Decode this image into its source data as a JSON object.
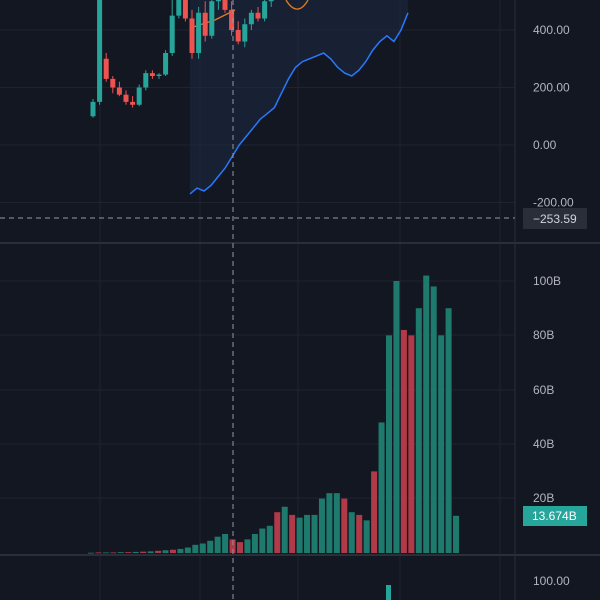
{
  "colors": {
    "background": "#131722",
    "grid": "#1f2330",
    "pane_divider": "#2a2e39",
    "up": "#26a69a",
    "down": "#ef5350",
    "volume_up": "#1f7a6e",
    "volume_down": "#b03a48",
    "line_blue": "#2979ff",
    "line_orange": "#e07b20",
    "crosshair": "#9598a1",
    "tag_bg": "#2a2e39",
    "volume_tag_bg": "#26a69a"
  },
  "price_axis": {
    "ticks": [
      "400.00",
      "200.00",
      "0.00",
      "-200.00"
    ],
    "crosshair_value": "−253.59"
  },
  "volume_axis": {
    "ticks": [
      "100B",
      "80B",
      "60B",
      "40B",
      "20B"
    ],
    "last_value": "13.674B"
  },
  "bottom_axis": {
    "ticks": [
      "100.00"
    ]
  },
  "chart_data": [
    {
      "type": "candlestick",
      "pane": "price",
      "ylim": [
        -300,
        520
      ],
      "candles": [
        {
          "o": 100,
          "h": 160,
          "l": 95,
          "c": 150
        },
        {
          "o": 150,
          "h": 520,
          "l": 140,
          "c": 520
        },
        {
          "o": 300,
          "h": 320,
          "l": 220,
          "c": 230
        },
        {
          "o": 230,
          "h": 240,
          "l": 180,
          "c": 200
        },
        {
          "o": 200,
          "h": 220,
          "l": 170,
          "c": 175
        },
        {
          "o": 175,
          "h": 190,
          "l": 140,
          "c": 150
        },
        {
          "o": 150,
          "h": 170,
          "l": 130,
          "c": 140
        },
        {
          "o": 140,
          "h": 210,
          "l": 135,
          "c": 200
        },
        {
          "o": 200,
          "h": 260,
          "l": 190,
          "c": 250
        },
        {
          "o": 250,
          "h": 260,
          "l": 230,
          "c": 240
        },
        {
          "o": 240,
          "h": 250,
          "l": 230,
          "c": 245
        },
        {
          "o": 245,
          "h": 330,
          "l": 240,
          "c": 320
        },
        {
          "o": 320,
          "h": 520,
          "l": 310,
          "c": 450
        },
        {
          "o": 450,
          "h": 520,
          "l": 440,
          "c": 520
        },
        {
          "o": 520,
          "h": 520,
          "l": 430,
          "c": 440
        },
        {
          "o": 440,
          "h": 470,
          "l": 300,
          "c": 320
        },
        {
          "o": 320,
          "h": 480,
          "l": 300,
          "c": 460
        },
        {
          "o": 460,
          "h": 500,
          "l": 360,
          "c": 380
        },
        {
          "o": 380,
          "h": 520,
          "l": 370,
          "c": 500
        },
        {
          "o": 500,
          "h": 520,
          "l": 470,
          "c": 510
        },
        {
          "o": 510,
          "h": 520,
          "l": 460,
          "c": 470
        },
        {
          "o": 470,
          "h": 500,
          "l": 380,
          "c": 400
        },
        {
          "o": 400,
          "h": 430,
          "l": 350,
          "c": 360
        },
        {
          "o": 360,
          "h": 440,
          "l": 340,
          "c": 420
        },
        {
          "o": 420,
          "h": 470,
          "l": 400,
          "c": 460
        },
        {
          "o": 460,
          "h": 480,
          "l": 430,
          "c": 440
        },
        {
          "o": 440,
          "h": 520,
          "l": 430,
          "c": 500
        },
        {
          "o": 500,
          "h": 520,
          "l": 480,
          "c": 510
        }
      ]
    },
    {
      "type": "line",
      "pane": "price",
      "series": [
        {
          "color": "blue",
          "values": [
            -170,
            -150,
            -160,
            -140,
            -110,
            -80,
            -40,
            0,
            30,
            60,
            90,
            110,
            130,
            180,
            230,
            270,
            290,
            300,
            310,
            320,
            300,
            270,
            250,
            240,
            260,
            290,
            330,
            360,
            380,
            360,
            400,
            460
          ]
        }
      ]
    },
    {
      "type": "bar",
      "pane": "volume",
      "ylim": [
        0,
        100
      ],
      "values": [
        0.1,
        0.2,
        0.2,
        0.2,
        0.3,
        0.3,
        0.4,
        0.5,
        0.6,
        0.8,
        1.0,
        1.2,
        1.5,
        2.0,
        3.0,
        3.5,
        4.5,
        6,
        7,
        5,
        4,
        5,
        7,
        9,
        10,
        15,
        17,
        14,
        13,
        14,
        14,
        20,
        22,
        22,
        20,
        15,
        14,
        12,
        30,
        48,
        80,
        100,
        82,
        80,
        90,
        102,
        98,
        80,
        90,
        13.674
      ],
      "colors": [
        "up",
        "down",
        "up",
        "down",
        "up",
        "down",
        "up",
        "down",
        "up",
        "down",
        "up",
        "down",
        "up",
        "up",
        "up",
        "up",
        "up",
        "up",
        "up",
        "down",
        "down",
        "up",
        "up",
        "up",
        "up",
        "down",
        "up",
        "down",
        "up",
        "up",
        "up",
        "up",
        "up",
        "up",
        "down",
        "up",
        "down",
        "up",
        "down",
        "up",
        "up",
        "up",
        "down",
        "down",
        "up",
        "up",
        "up",
        "up",
        "up",
        "up"
      ]
    }
  ]
}
